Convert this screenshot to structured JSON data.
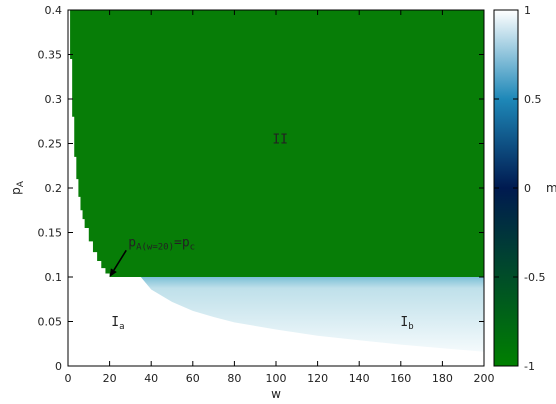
{
  "chart_data": {
    "type": "heatmap",
    "xlabel": "w",
    "ylabel": "p",
    "ylabel_sub": "A",
    "xlim": [
      0,
      200
    ],
    "ylim": [
      0,
      0.4
    ],
    "x_ticks": [
      0,
      20,
      40,
      60,
      80,
      100,
      120,
      140,
      160,
      180,
      200
    ],
    "y_ticks": [
      0,
      0.05,
      0.1,
      0.15,
      0.2,
      0.25,
      0.3,
      0.35,
      0.4
    ],
    "colorbar": {
      "label": "m",
      "range": [
        -1,
        1
      ],
      "ticks": [
        -1,
        -0.5,
        0,
        0.5,
        1
      ],
      "colors": [
        "#008000",
        "#001a50",
        "#1e88b8",
        "#ffffff"
      ]
    },
    "regions": [
      {
        "label_main": "II",
        "label_sub": "",
        "m": -1,
        "color": "#077d07",
        "label_x": 102,
        "label_y": 0.25
      },
      {
        "label_main": "I",
        "label_sub": "a",
        "m": 1,
        "color": "#ffffff",
        "label_x": 24,
        "label_y": 0.045
      },
      {
        "label_main": "I",
        "label_sub": "b",
        "m": 0.8,
        "color": "#d5eaf2",
        "label_x": 163,
        "label_y": 0.045
      }
    ],
    "phase_boundary_upper": {
      "description": "green region exists for p_A above this curve",
      "points": [
        [
          0,
          0.4
        ],
        [
          1,
          0.345
        ],
        [
          2,
          0.28
        ],
        [
          3,
          0.235
        ],
        [
          4,
          0.21
        ],
        [
          5,
          0.19
        ],
        [
          6,
          0.175
        ],
        [
          7,
          0.165
        ],
        [
          8,
          0.155
        ],
        [
          10,
          0.14
        ],
        [
          12,
          0.128
        ],
        [
          14,
          0.118
        ],
        [
          16,
          0.11
        ],
        [
          18,
          0.104
        ],
        [
          20,
          0.1
        ],
        [
          200,
          0.1
        ]
      ]
    },
    "phase_boundary_lower": {
      "description": "blue-white region Ib lies above this curve, below p_A=0.1",
      "points": [
        [
          35,
          0.1
        ],
        [
          40,
          0.086
        ],
        [
          50,
          0.072
        ],
        [
          60,
          0.062
        ],
        [
          70,
          0.055
        ],
        [
          80,
          0.049
        ],
        [
          100,
          0.041
        ],
        [
          120,
          0.034
        ],
        [
          140,
          0.029
        ],
        [
          160,
          0.024
        ],
        [
          180,
          0.02
        ],
        [
          200,
          0.016
        ]
      ]
    },
    "annotation": {
      "text_p": "p",
      "text_sub": "A(w=20)",
      "text_eq": "=",
      "text_p2": "p",
      "text_sub2": "c",
      "arrow_from": [
        28,
        0.13
      ],
      "arrow_to": [
        20,
        0.1
      ]
    }
  }
}
